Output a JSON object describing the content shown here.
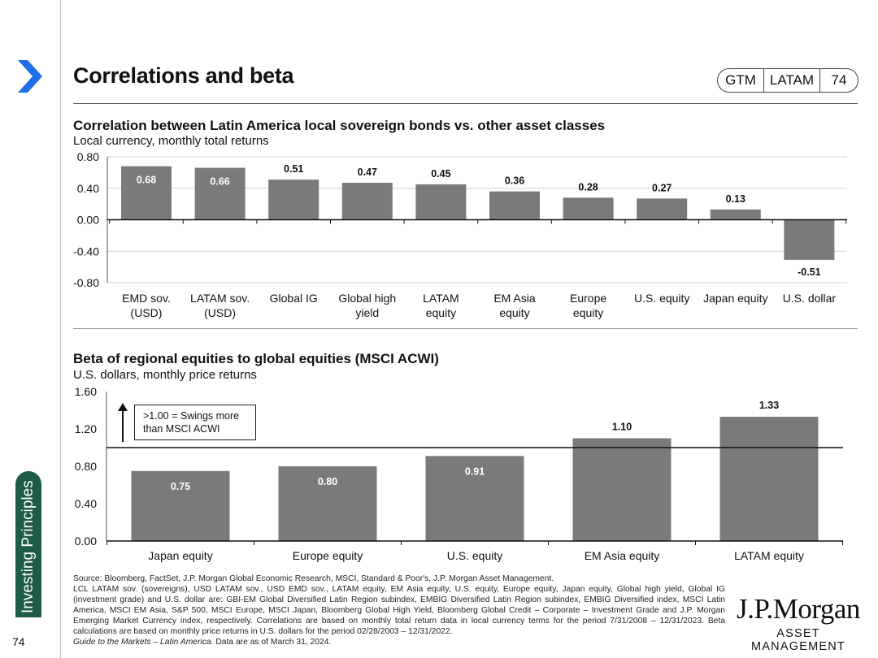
{
  "header": {
    "title": "Correlations and beta",
    "badge": {
      "part1": "GTM",
      "part2": "LATAM",
      "part3": "74"
    }
  },
  "sidebar": {
    "label": "Investing Principles",
    "page_number": "74"
  },
  "colors": {
    "bar": "#7a7a7a",
    "accent": "#1f5c45",
    "chevron": "#1e6fe8"
  },
  "chart_data": [
    {
      "type": "bar",
      "title": "Correlation between Latin America local sovereign bonds vs. other asset classes",
      "subtitle": "Local currency, monthly total returns",
      "categories": [
        [
          "EMD sov.",
          "(USD)"
        ],
        [
          "LATAM sov.",
          "(USD)"
        ],
        [
          "Global IG"
        ],
        [
          "Global high",
          "yield"
        ],
        [
          "LATAM",
          "equity"
        ],
        [
          "EM Asia",
          "equity"
        ],
        [
          "Europe",
          "equity"
        ],
        [
          "U.S. equity"
        ],
        [
          "Japan equity"
        ],
        [
          "U.S. dollar"
        ]
      ],
      "values": [
        0.68,
        0.66,
        0.51,
        0.47,
        0.45,
        0.36,
        0.28,
        0.27,
        0.13,
        -0.51
      ],
      "data_labels": [
        "0.68",
        "0.66",
        "0.51",
        "0.47",
        "0.45",
        "0.36",
        "0.28",
        "0.27",
        "0.13",
        "-0.51"
      ],
      "ylim": [
        -0.8,
        0.8
      ],
      "yticks": [
        "0.80",
        "0.40",
        "0.00",
        "-0.40",
        "-0.80"
      ],
      "ytick_values": [
        0.8,
        0.4,
        0.0,
        -0.4,
        -0.8
      ],
      "grid": true
    },
    {
      "type": "bar",
      "title": "Beta of regional equities to global equities (MSCI ACWI)",
      "subtitle": "U.S. dollars, monthly price returns",
      "categories": [
        "Japan equity",
        "Europe equity",
        "U.S. equity",
        "EM Asia equity",
        "LATAM equity"
      ],
      "values": [
        0.75,
        0.8,
        0.91,
        1.1,
        1.33
      ],
      "data_labels": [
        "0.75",
        "0.80",
        "0.91",
        "1.10",
        "1.33"
      ],
      "ylim": [
        0,
        1.6
      ],
      "yticks": [
        "1.60",
        "1.20",
        "0.80",
        "0.40",
        "0.00"
      ],
      "ytick_values": [
        1.6,
        1.2,
        0.8,
        0.4,
        0.0
      ],
      "reference_line": 1.0,
      "annotation": {
        "line1": ">1.00 = Swings more",
        "line2": "than MSCI ACWI"
      }
    }
  ],
  "footer": {
    "source_line1": "Source: Bloomberg, FactSet, J.P. Morgan Global Economic Research, MSCI, Standard & Poor's, J.P. Morgan Asset Management.",
    "source_line2": "LCL LATAM sov. (sovereigns), USD LATAM sov., USD EMD sov., LATAM equity, EM Asia equity, U.S. equity, Europe equity, Japan equity, Global high yield, Global IG (investment grade) and U.S. dollar are: GBI-EM Global Diversified Latin Region subindex, EMBIG Diversified Latin Region subindex, EMBIG Diversified index, MSCI Latin America, MSCI EM Asia, S&P 500, MSCI Europe, MSCI Japan, Bloomberg Global High Yield, Bloomberg Global Credit – Corporate – Investment Grade and J.P. Morgan Emerging Market Currency index, respectively. Correlations are based on monthly total return data in local currency terms for the period 7/31/2008 – 12/31/2023. Beta calculations are based on monthly price returns in U.S. dollars for the period 02/28/2003 – 12/31/2022.",
    "guide_title": "Guide to the Markets – Latin America.",
    "data_as_of": "Data are as of March 31, 2024."
  },
  "brand": {
    "name": "J.P.Morgan",
    "sub": "ASSET MANAGEMENT"
  }
}
